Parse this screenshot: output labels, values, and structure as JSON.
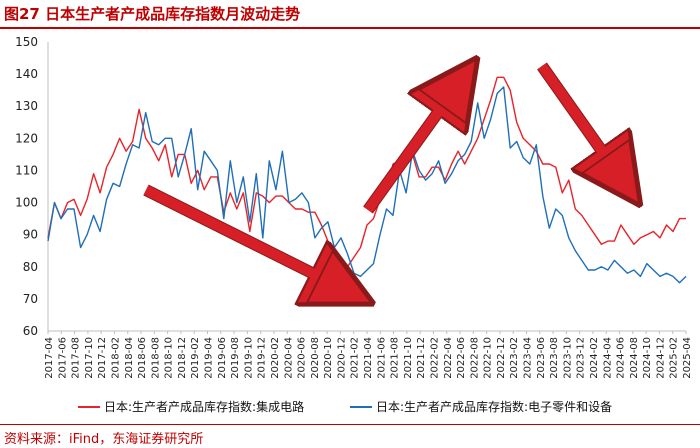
{
  "figure_title": "图27  日本生产者产成品库存指数月波动走势",
  "source": "资料来源：iFind，东海证券研究所",
  "chart_data": {
    "type": "line",
    "ylim": [
      60,
      150
    ],
    "yticks": [
      60,
      70,
      80,
      90,
      100,
      110,
      120,
      130,
      140,
      150
    ],
    "xtick_labels": [
      "2017-04",
      "2017-06",
      "2017-08",
      "2017-10",
      "2017-12",
      "2018-02",
      "2018-04",
      "2018-06",
      "2018-08",
      "2018-10",
      "2018-12",
      "2019-02",
      "2019-04",
      "2019-06",
      "2019-08",
      "2019-10",
      "2019-12",
      "2020-02",
      "2020-04",
      "2020-06",
      "2020-08",
      "2020-10",
      "2020-12",
      "2021-02",
      "2021-04",
      "2021-06",
      "2021-08",
      "2021-10",
      "2021-12",
      "2022-02",
      "2022-04",
      "2022-06",
      "2022-08",
      "2022-10",
      "2022-12",
      "2023-02",
      "2023-04",
      "2023-06",
      "2023-08",
      "2023-10",
      "2023-12",
      "2024-02",
      "2024-04",
      "2024-06",
      "2024-08",
      "2024-10",
      "2024-12",
      "2025-02",
      "2025-04"
    ],
    "grid": false,
    "legend_position": "bottom",
    "series": [
      {
        "name": "日本:生产者产成品库存指数:集成电路",
        "color": "#e8232a",
        "values": [
          89,
          100,
          95,
          100,
          101,
          96,
          101,
          109,
          103,
          111,
          115,
          120,
          116,
          119,
          129,
          120,
          117,
          113,
          118,
          108,
          115,
          115,
          106,
          110,
          104,
          108,
          108,
          97,
          103,
          98,
          103,
          91,
          103,
          102,
          100,
          102,
          102,
          100,
          98,
          98,
          97,
          97,
          93,
          88,
          80,
          76,
          80,
          83,
          86,
          93,
          95,
          101,
          103,
          112,
          113,
          116,
          115,
          108,
          108,
          111,
          111,
          107,
          112,
          116,
          112,
          116,
          120,
          126,
          132,
          139,
          139,
          135,
          125,
          120,
          118,
          116,
          112,
          112,
          111,
          103,
          107,
          98,
          96,
          93,
          90,
          87,
          88,
          88,
          93,
          90,
          87,
          89,
          90,
          91,
          89,
          93,
          91,
          95,
          95
        ]
      },
      {
        "name": "日本:生产者产成品库存指数:电子零件和设备",
        "color": "#1f6fb8",
        "values": [
          88,
          100,
          95,
          98,
          98,
          86,
          90,
          96,
          91,
          101,
          106,
          105,
          112,
          118,
          117,
          128,
          119,
          118,
          120,
          120,
          108,
          115,
          123,
          104,
          116,
          113,
          110,
          95,
          113,
          100,
          108,
          94,
          109,
          89,
          113,
          104,
          116,
          100,
          101,
          103,
          100,
          89,
          92,
          94,
          86,
          89,
          84,
          78,
          77,
          79,
          81,
          90,
          98,
          96,
          110,
          103,
          116,
          110,
          107,
          109,
          113,
          106,
          109,
          113,
          115,
          119,
          131,
          120,
          126,
          134,
          136,
          117,
          119,
          114,
          112,
          118,
          102,
          92,
          98,
          96,
          89,
          85,
          82,
          79,
          79,
          80,
          79,
          82,
          80,
          78,
          79,
          77,
          81,
          79,
          77,
          78,
          77,
          75,
          77
        ]
      }
    ],
    "annotations": [
      "red-arrow-down-2018-2021",
      "red-arrow-up-2021-2023",
      "red-arrow-down-2023-2024"
    ]
  }
}
